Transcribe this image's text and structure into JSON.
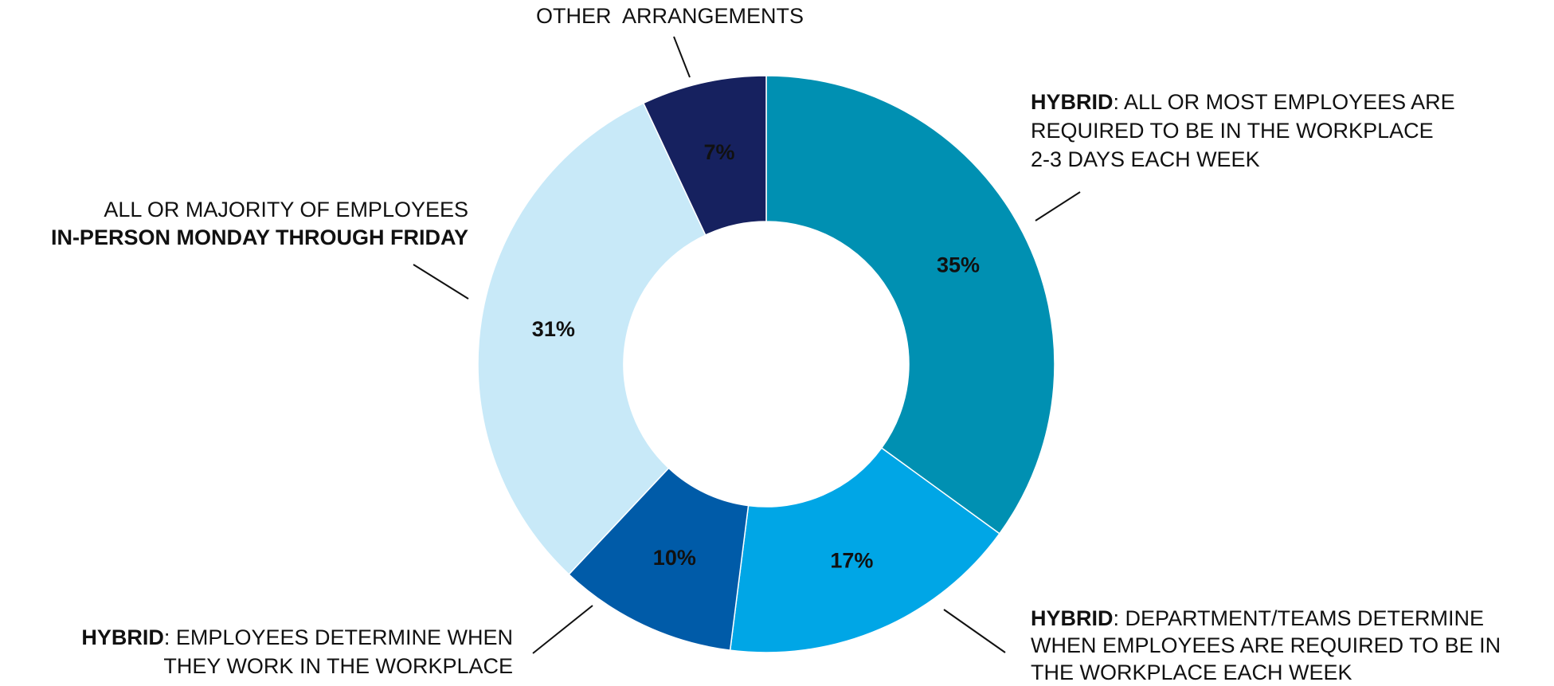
{
  "chart_data": {
    "type": "donut",
    "categories": [
      [
        [
          {
            "text": "HYBRID",
            "bold": true
          },
          {
            "text": ": ALL OR MOST EMPLOYEES ARE"
          }
        ],
        [
          {
            "text": "REQUIRED TO BE IN THE WORKPLACE"
          }
        ],
        [
          {
            "text": "2-3 DAYS EACH WEEK"
          }
        ]
      ],
      [
        [
          {
            "text": "HYBRID",
            "bold": true
          },
          {
            "text": ": DEPARTMENT/TEAMS DETERMINE"
          }
        ],
        [
          {
            "text": "WHEN EMPLOYEES ARE REQUIRED TO BE IN"
          }
        ],
        [
          {
            "text": "THE WORKPLACE EACH WEEK"
          }
        ]
      ],
      [
        [
          {
            "text": "HYBRID",
            "bold": true
          },
          {
            "text": ": EMPLOYEES DETERMINE WHEN"
          }
        ],
        [
          {
            "text": "THEY WORK IN THE WORKPLACE"
          }
        ]
      ],
      [
        [
          {
            "text": "ALL OR MAJORITY OF EMPLOYEES"
          }
        ],
        [
          {
            "text": "IN-PERSON MONDAY THROUGH FRIDAY",
            "bold": true
          }
        ]
      ],
      [
        [
          {
            "text": "OTHER  ARRANGEMENTS"
          }
        ]
      ]
    ],
    "values": [
      35,
      17,
      10,
      31,
      7
    ],
    "value_labels": [
      "35%",
      "17%",
      "10%",
      "31%",
      "7%"
    ],
    "colors": [
      "#0090b2",
      "#00a6e6",
      "#005ba8",
      "#c8e9f8",
      "#16215f"
    ],
    "value_label_colors": [
      "#ffffff",
      "#ffffff",
      "#ffffff",
      "#222222",
      "#ffffff"
    ]
  }
}
